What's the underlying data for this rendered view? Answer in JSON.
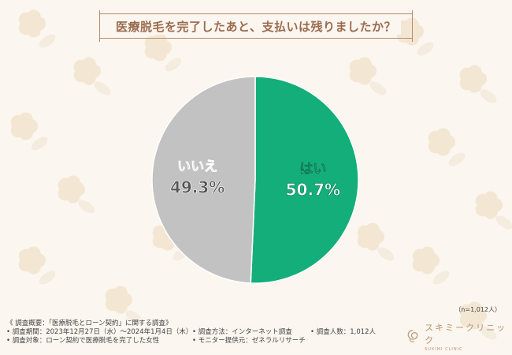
{
  "title": "医療脱毛を完了したあと、支払いは残りましたか？",
  "sample_size": "（n=1,012人）",
  "survey": {
    "overview": "《 調査概要：「医療脱毛とローン契約」に関する調査》",
    "period": "• 調査期間：2023年12月27日（水）〜2024年1月4日（木）",
    "method": "• 調査方法：インターネット調査",
    "count": "• 調査人数：1,012人",
    "target": "• 調査対象：ローン契約で医療脱毛を完了した女性",
    "provider": "• モニター提供元：ゼネラルリサーチ"
  },
  "logo": {
    "name": "スキミークリニック",
    "sub": "SUKIMI CLINIC"
  },
  "colors": {
    "yes": "#13ae7a",
    "no": "#c2c2c2",
    "title": "#9b6a4e",
    "flower": "#f3e7d3",
    "leaf": "#f4ecdf"
  },
  "chart_data": {
    "type": "pie",
    "labels": [
      "はい",
      "いいえ"
    ],
    "values": [
      50.7,
      49.3
    ],
    "value_labels": [
      "50.7%",
      "49.3%"
    ],
    "start": "12 o'clock",
    "direction": "clockwise"
  }
}
